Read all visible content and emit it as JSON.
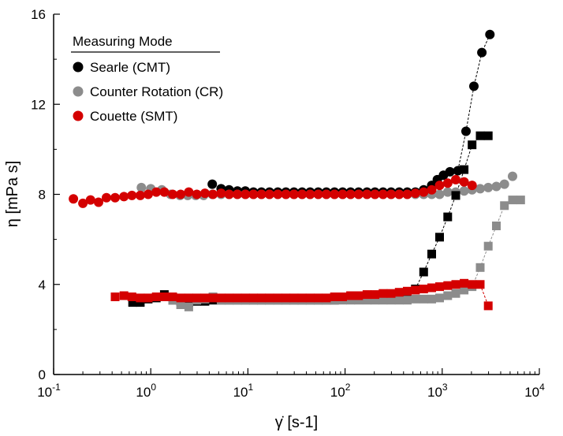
{
  "chart_data": {
    "type": "scatter",
    "x_scale": "log",
    "xlim": [
      0.1,
      10000
    ],
    "ylim": [
      0,
      16
    ],
    "x_ticks": [
      {
        "base": "10",
        "exp": "-1"
      },
      {
        "base": "10",
        "exp": "0"
      },
      {
        "base": "10",
        "exp": "1"
      },
      {
        "base": "10",
        "exp": "2"
      },
      {
        "base": "10",
        "exp": "3"
      },
      {
        "base": "10",
        "exp": "4"
      }
    ],
    "y_ticks": [
      "0",
      "4",
      "8",
      "12",
      "16"
    ],
    "xlabel": "γ̇ [s-1]",
    "ylabel": "η [mPa s]",
    "legend": {
      "title": "Measuring Mode",
      "position": "top-left",
      "entries": [
        {
          "label": "Searle (CMT)",
          "color": "#000000"
        },
        {
          "label": "Counter Rotation (CR)",
          "color": "#8c8c8c"
        },
        {
          "label": "Couette (SMT)",
          "color": "#d40000"
        }
      ]
    },
    "series": [
      {
        "name": "Searle (CMT)",
        "marker": "circle",
        "color": "#000000",
        "x": [
          4.3,
          5.3,
          6.4,
          7.8,
          9.4,
          11.4,
          13.8,
          16.7,
          20.3,
          24.6,
          29.8,
          36.1,
          43.7,
          53,
          64.2,
          77.8,
          94.3,
          114,
          138,
          168,
          203,
          246,
          298,
          361,
          437,
          530,
          645,
          780,
          890,
          1030,
          1200,
          1450,
          1760,
          2120,
          2560,
          3100
        ],
        "y": [
          8.45,
          8.25,
          8.2,
          8.15,
          8.15,
          8.1,
          8.1,
          8.1,
          8.1,
          8.1,
          8.1,
          8.1,
          8.1,
          8.1,
          8.1,
          8.1,
          8.1,
          8.1,
          8.1,
          8.1,
          8.1,
          8.1,
          8.1,
          8.1,
          8.1,
          8.1,
          8.2,
          8.4,
          8.65,
          8.85,
          9.0,
          9.05,
          10.8,
          12.8,
          14.3,
          15.1
        ]
      },
      {
        "name": "Counter Rotation (CR)",
        "marker": "circle",
        "color": "#8c8c8c",
        "x": [
          0.8,
          1.0,
          1.3,
          1.6,
          2.0,
          2.4,
          2.9,
          3.5,
          4.3,
          5.3,
          6.4,
          7.8,
          9.4,
          11.4,
          13.8,
          16.7,
          20.3,
          24.6,
          29.8,
          36.1,
          43.7,
          53,
          64.2,
          77.8,
          94.3,
          114,
          138,
          168,
          203,
          246,
          298,
          361,
          437,
          530,
          645,
          780,
          940,
          1140,
          1380,
          1680,
          2030,
          2460,
          2980,
          3610,
          4370,
          5300
        ],
        "y": [
          8.3,
          8.25,
          8.2,
          8.0,
          7.95,
          7.95,
          7.95,
          7.95,
          8.0,
          8.0,
          8.0,
          8.0,
          8.0,
          8.0,
          8.0,
          8.0,
          8.0,
          8.0,
          8.0,
          8.0,
          8.0,
          8.0,
          8.0,
          8.0,
          8.0,
          8.0,
          8.0,
          8.0,
          8.0,
          8.0,
          8.0,
          8.0,
          8.0,
          8.0,
          8.0,
          8.0,
          8.0,
          8.1,
          8.1,
          8.15,
          8.2,
          8.25,
          8.3,
          8.35,
          8.45,
          8.8
        ]
      },
      {
        "name": "Couette (SMT)",
        "marker": "circle",
        "color": "#d40000",
        "x": [
          0.16,
          0.2,
          0.24,
          0.29,
          0.35,
          0.43,
          0.53,
          0.64,
          0.78,
          0.94,
          1.14,
          1.38,
          1.68,
          2.03,
          2.46,
          2.98,
          3.61,
          4.37,
          5.3,
          6.42,
          7.78,
          9.43,
          11.4,
          13.8,
          16.7,
          20.3,
          24.6,
          29.8,
          36.1,
          43.7,
          53,
          64.2,
          77.8,
          94.3,
          114,
          138,
          168,
          203,
          246,
          298,
          361,
          437,
          530,
          645,
          780,
          940,
          1140,
          1380,
          1680,
          2030
        ],
        "y": [
          7.8,
          7.6,
          7.75,
          7.65,
          7.85,
          7.85,
          7.9,
          7.95,
          7.95,
          8.0,
          8.1,
          8.1,
          8.0,
          8.0,
          8.1,
          8.0,
          8.05,
          8.0,
          8.05,
          8.0,
          8.0,
          8.0,
          8.0,
          8.0,
          8.0,
          8.0,
          8.0,
          8.0,
          8.0,
          8.0,
          8.0,
          8.0,
          8.0,
          8.0,
          8.0,
          8.0,
          8.0,
          8.0,
          8.0,
          8.0,
          8.0,
          8.0,
          8.05,
          8.1,
          8.2,
          8.4,
          8.5,
          8.65,
          8.55,
          8.4
        ]
      },
      {
        "name": "Searle (CMT)",
        "marker": "square",
        "color": "#000000",
        "x": [
          0.65,
          0.78,
          0.94,
          1.14,
          1.38,
          1.68,
          2.03,
          2.46,
          2.98,
          3.61,
          4.37,
          5.3,
          6.42,
          7.78,
          9.43,
          11.4,
          13.8,
          16.7,
          20.3,
          24.6,
          29.8,
          36.1,
          43.7,
          53,
          64.2,
          77.8,
          94.3,
          114,
          138,
          168,
          203,
          246,
          298,
          361,
          437,
          530,
          645,
          780,
          940,
          1140,
          1380,
          1680,
          2030,
          2460,
          2980
        ],
        "y": [
          3.2,
          3.2,
          3.35,
          3.4,
          3.55,
          3.3,
          3.25,
          3.2,
          3.25,
          3.25,
          3.3,
          3.3,
          3.3,
          3.3,
          3.3,
          3.3,
          3.3,
          3.3,
          3.3,
          3.3,
          3.3,
          3.3,
          3.3,
          3.3,
          3.3,
          3.3,
          3.35,
          3.35,
          3.4,
          3.4,
          3.45,
          3.5,
          3.5,
          3.55,
          3.6,
          3.8,
          4.55,
          5.35,
          6.1,
          7.0,
          7.95,
          9.1,
          10.2,
          10.6,
          10.6
        ]
      },
      {
        "name": "Counter Rotation (CR)",
        "marker": "square",
        "color": "#8c8c8c",
        "x": [
          1.68,
          2.03,
          2.46,
          2.98,
          3.61,
          4.37,
          5.3,
          6.42,
          7.78,
          9.43,
          11.4,
          13.8,
          16.7,
          20.3,
          24.6,
          29.8,
          36.1,
          43.7,
          53,
          64.2,
          77.8,
          94.3,
          114,
          138,
          168,
          203,
          246,
          298,
          361,
          437,
          530,
          645,
          780,
          940,
          1140,
          1380,
          1680,
          2030,
          2460,
          2980,
          3610,
          4370,
          5300,
          6420
        ],
        "y": [
          3.3,
          3.1,
          3.0,
          3.3,
          3.35,
          3.45,
          3.3,
          3.3,
          3.3,
          3.3,
          3.3,
          3.3,
          3.3,
          3.3,
          3.3,
          3.3,
          3.3,
          3.3,
          3.3,
          3.3,
          3.3,
          3.3,
          3.3,
          3.3,
          3.3,
          3.3,
          3.3,
          3.3,
          3.3,
          3.3,
          3.35,
          3.35,
          3.35,
          3.4,
          3.5,
          3.6,
          3.75,
          3.9,
          4.75,
          5.7,
          6.6,
          7.5,
          7.75,
          7.75
        ]
      },
      {
        "name": "Couette (SMT)",
        "marker": "square",
        "color": "#d40000",
        "x": [
          0.43,
          0.53,
          0.64,
          0.78,
          0.94,
          1.14,
          1.38,
          1.68,
          2.03,
          2.46,
          2.98,
          3.61,
          4.37,
          5.3,
          6.42,
          7.78,
          9.43,
          11.4,
          13.8,
          16.7,
          20.3,
          24.6,
          29.8,
          36.1,
          43.7,
          53,
          64.2,
          77.8,
          94.3,
          114,
          138,
          168,
          203,
          246,
          298,
          361,
          437,
          530,
          645,
          780,
          940,
          1140,
          1380,
          1680,
          2030,
          2460,
          2980
        ],
        "y": [
          3.45,
          3.5,
          3.45,
          3.4,
          3.4,
          3.45,
          3.45,
          3.45,
          3.4,
          3.4,
          3.4,
          3.4,
          3.4,
          3.4,
          3.4,
          3.4,
          3.4,
          3.4,
          3.4,
          3.4,
          3.4,
          3.4,
          3.4,
          3.4,
          3.4,
          3.4,
          3.4,
          3.45,
          3.45,
          3.5,
          3.5,
          3.55,
          3.55,
          3.6,
          3.6,
          3.65,
          3.7,
          3.75,
          3.8,
          3.85,
          3.9,
          3.95,
          4.0,
          4.05,
          4.0,
          4.0,
          3.05
        ]
      }
    ],
    "trend_lines": [
      {
        "color": "#000000",
        "x": [
          530,
          645,
          780,
          940,
          1140,
          1380,
          1680,
          2030,
          2460,
          2980
        ],
        "y": [
          3.8,
          4.55,
          5.35,
          6.1,
          7.0,
          7.95,
          9.1,
          10.2,
          10.6,
          10.6
        ]
      },
      {
        "color": "#000000",
        "x": [
          780,
          890,
          1030,
          1200,
          1450,
          1760,
          2120,
          2560,
          3100
        ],
        "y": [
          8.4,
          8.65,
          8.85,
          9.0,
          9.05,
          10.8,
          12.8,
          14.3,
          15.1
        ]
      },
      {
        "color": "#8c8c8c",
        "x": [
          2030,
          2460,
          2980,
          3610,
          4370,
          5300,
          6420
        ],
        "y": [
          3.9,
          4.75,
          5.7,
          6.6,
          7.5,
          7.75,
          7.75
        ]
      },
      {
        "color": "#d40000",
        "x": [
          2460,
          2980
        ],
        "y": [
          4.0,
          3.05
        ]
      }
    ]
  }
}
